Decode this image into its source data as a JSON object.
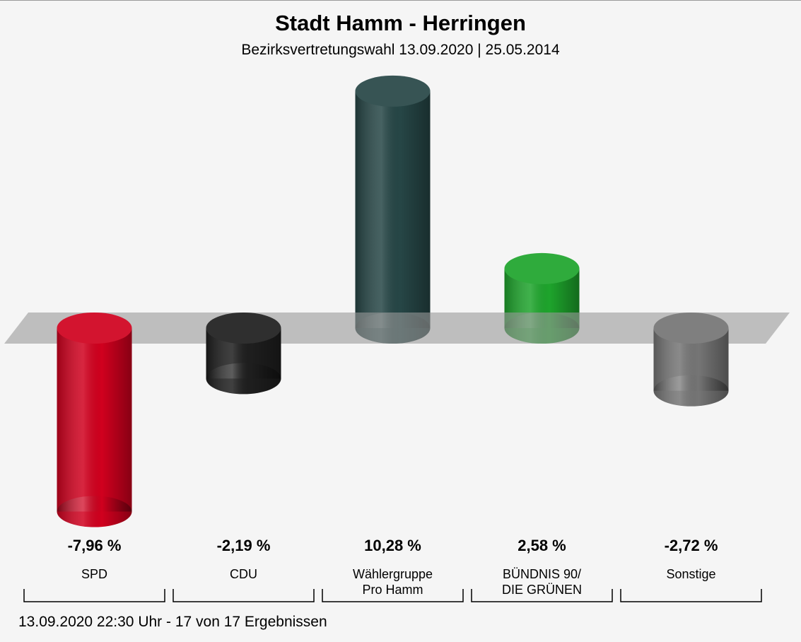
{
  "chart_data": {
    "type": "bar",
    "title": "Stadt Hamm - Herringen",
    "subtitle": "Bezirksvertretungswahl 13.09.2020  | 25.05.2014",
    "categories": [
      "SPD",
      "CDU",
      "Wählergruppe\nPro Hamm",
      "BÜNDNIS 90/\nDIE GRÜNEN",
      "Sonstige"
    ],
    "values": [
      -7.96,
      -2.19,
      10.28,
      2.58,
      -2.72
    ],
    "value_labels": [
      "-7,96 %",
      "-2,19 %",
      "10,28 %",
      "2,58 %",
      "-2,72 %"
    ],
    "colors": [
      "#d0001e",
      "#1e1e1e",
      "#264646",
      "#1ea42c",
      "#757575"
    ],
    "footer": "13.09.2020 22:30 Uhr - 17 von 17 Ergebnissen"
  }
}
